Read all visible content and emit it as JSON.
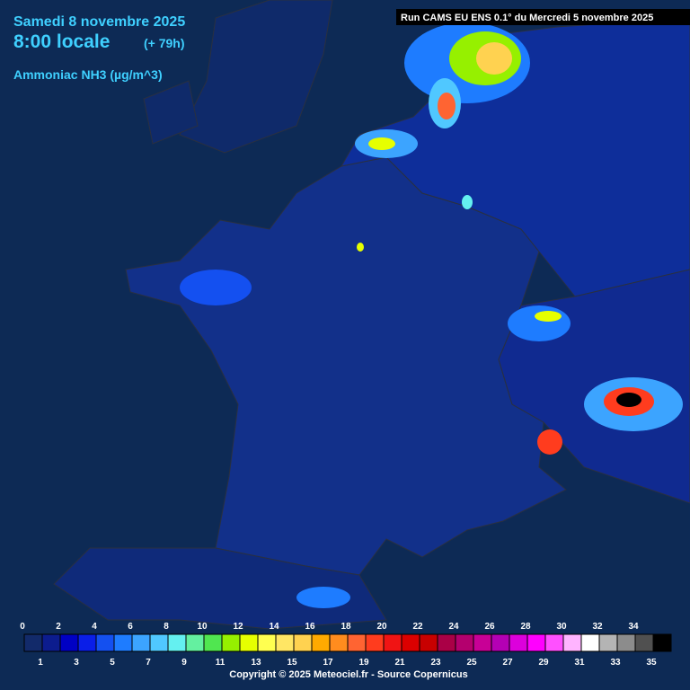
{
  "header": {
    "date": "Samedi 8 novembre 2025",
    "time": "8:00 locale",
    "lead": "(+ 79h)",
    "variable": "Ammoniac NH3 (µg/m^3)",
    "run": "Run CAMS EU ENS 0.1° du Mercredi 5 novembre 2025"
  },
  "legend": {
    "ticks": [
      0,
      1,
      2,
      3,
      4,
      5,
      6,
      7,
      8,
      9,
      10,
      11,
      12,
      13,
      14,
      15,
      16,
      17,
      18,
      19,
      20,
      21,
      22,
      23,
      24,
      25,
      26,
      27,
      28,
      29,
      30,
      31,
      32,
      33,
      34,
      35
    ],
    "colors": [
      "#122a6a",
      "#0c1c8e",
      "#0000c4",
      "#0a1ee8",
      "#1450f0",
      "#1e7cff",
      "#3ca4ff",
      "#50c8ff",
      "#64f0f0",
      "#64f0a0",
      "#50e650",
      "#96f000",
      "#e6ff00",
      "#ffff50",
      "#ffe664",
      "#ffd250",
      "#ffaa00",
      "#ff8c1e",
      "#ff6432",
      "#ff3c1e",
      "#f01414",
      "#dc0000",
      "#c80000",
      "#aa0046",
      "#b4006e",
      "#c80096",
      "#b400b4",
      "#dc00dc",
      "#ff00ff",
      "#ff50ff",
      "#ffb4ff",
      "#ffffff",
      "#b4b4b4",
      "#8c8c8c",
      "#505050",
      "#000000"
    ]
  },
  "footer": {
    "copyright": "Copyright © 2025 Meteociel.fr - Source Copernicus"
  }
}
